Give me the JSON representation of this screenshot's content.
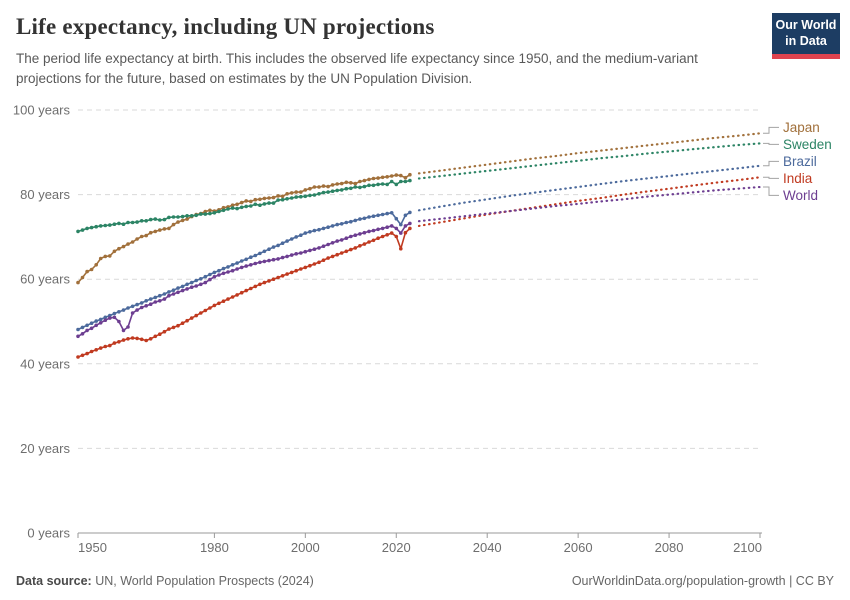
{
  "header": {
    "title": "Life expectancy, including UN projections",
    "subtitle": "The period life expectancy at birth. This includes the observed life expectancy since 1950, and the medium-variant projections for the future, based on estimates by the UN Population Division.",
    "logo": {
      "line1": "Our World",
      "line2": "in Data",
      "bg": "#1D3D63",
      "accent": "#E0434F"
    }
  },
  "footer": {
    "source_label": "Data source:",
    "source_value": " UN, World Population Prospects (2024)",
    "link": "OurWorldinData.org/population-growth | CC BY"
  },
  "chart_data": {
    "type": "line",
    "title": "Life expectancy, including UN projections",
    "xlabel": "",
    "ylabel": "years",
    "xlim": [
      1950,
      2100
    ],
    "ylim": [
      0,
      100
    ],
    "grid": "horizontal-dashed",
    "legend_position": "right-of-line-ends",
    "x_ticks": [
      "1950",
      "1980",
      "2000",
      "2020",
      "2040",
      "2060",
      "2080",
      "2100"
    ],
    "y_ticks": [
      {
        "value": 0,
        "label": "0 years"
      },
      {
        "value": 20,
        "label": "20 years"
      },
      {
        "value": 40,
        "label": "40 years"
      },
      {
        "value": 60,
        "label": "60 years"
      },
      {
        "value": 80,
        "label": "80 years"
      },
      {
        "value": 100,
        "label": "100 years"
      }
    ],
    "observed_period": "1950-2023 solid line with yearly dot markers",
    "projected_period": "2024-2100 dotted line (UN medium-variant projection)",
    "series": [
      {
        "name": "Japan",
        "color": "#A1703B",
        "observed": {
          "start": 1950,
          "step": 1,
          "values": [
            59.2,
            60.4,
            61.8,
            62.3,
            63.4,
            64.9,
            65.4,
            65.5,
            66.6,
            67.2,
            67.7,
            68.3,
            68.8,
            69.5,
            70.1,
            70.3,
            71.0,
            71.3,
            71.6,
            71.9,
            72.0,
            72.9,
            73.5,
            73.9,
            74.2,
            74.8,
            75.3,
            75.5,
            76.0,
            76.3,
            76.1,
            76.4,
            76.9,
            77.1,
            77.5,
            77.7,
            78.1,
            78.5,
            78.4,
            78.8,
            78.9,
            79.1,
            79.2,
            79.3,
            79.7,
            79.6,
            80.2,
            80.4,
            80.6,
            80.6,
            81.1,
            81.4,
            81.8,
            81.8,
            82.0,
            81.9,
            82.3,
            82.5,
            82.6,
            82.9,
            82.8,
            82.6,
            83.1,
            83.3,
            83.6,
            83.8,
            83.9,
            84.1,
            84.2,
            84.4,
            84.6,
            84.5,
            84.0,
            84.7
          ]
        },
        "projected": {
          "start": 2025,
          "step": 5,
          "values": [
            85.0,
            85.7,
            86.4,
            87.1,
            87.8,
            88.5,
            89.1,
            89.8,
            90.4,
            91.0,
            91.6,
            92.2,
            92.8,
            93.4,
            93.9,
            94.5
          ]
        }
      },
      {
        "name": "Sweden",
        "color": "#2C8465",
        "observed": {
          "start": 1950,
          "step": 1,
          "values": [
            71.3,
            71.6,
            72.0,
            72.2,
            72.4,
            72.6,
            72.7,
            72.8,
            73.0,
            73.2,
            73.0,
            73.4,
            73.4,
            73.5,
            73.8,
            73.8,
            74.1,
            74.2,
            74.0,
            74.1,
            74.6,
            74.7,
            74.7,
            74.8,
            75.0,
            75.0,
            75.1,
            75.4,
            75.4,
            75.5,
            75.7,
            76.0,
            76.3,
            76.6,
            76.8,
            76.7,
            77.0,
            77.2,
            77.3,
            77.7,
            77.5,
            77.8,
            78.0,
            78.0,
            78.7,
            78.8,
            79.0,
            79.2,
            79.4,
            79.5,
            79.6,
            79.8,
            79.9,
            80.2,
            80.5,
            80.6,
            80.8,
            81.0,
            81.1,
            81.4,
            81.5,
            81.8,
            81.7,
            81.9,
            82.2,
            82.2,
            82.4,
            82.5,
            82.4,
            83.1,
            82.4,
            83.1,
            83.1,
            83.3
          ]
        },
        "projected": {
          "start": 2025,
          "step": 5,
          "values": [
            83.8,
            84.4,
            85.0,
            85.6,
            86.2,
            86.8,
            87.4,
            88.0,
            88.6,
            89.1,
            89.7,
            90.2,
            90.7,
            91.2,
            91.7,
            92.1
          ]
        }
      },
      {
        "name": "Brazil",
        "color": "#4C6A9C",
        "observed": {
          "start": 1950,
          "step": 1,
          "values": [
            48.1,
            48.6,
            49.1,
            49.6,
            50.1,
            50.5,
            51.0,
            51.4,
            51.9,
            52.3,
            52.7,
            53.2,
            53.6,
            54.0,
            54.4,
            54.9,
            55.3,
            55.7,
            56.1,
            56.5,
            57.0,
            57.4,
            57.9,
            58.3,
            58.8,
            59.2,
            59.7,
            60.1,
            60.6,
            61.1,
            61.6,
            62.0,
            62.5,
            62.9,
            63.4,
            63.8,
            64.3,
            64.7,
            65.2,
            65.6,
            66.1,
            66.6,
            67.1,
            67.6,
            68.0,
            68.5,
            69.0,
            69.5,
            70.0,
            70.4,
            70.9,
            71.2,
            71.5,
            71.7,
            72.0,
            72.3,
            72.6,
            72.9,
            73.1,
            73.4,
            73.6,
            73.9,
            74.2,
            74.4,
            74.7,
            74.9,
            75.1,
            75.3,
            75.5,
            75.7,
            74.3,
            72.9,
            75.1,
            75.8
          ]
        },
        "projected": {
          "start": 2025,
          "step": 5,
          "values": [
            76.3,
            77.2,
            78.1,
            78.9,
            79.7,
            80.4,
            81.1,
            81.8,
            82.5,
            83.2,
            83.8,
            84.4,
            85.0,
            85.6,
            86.2,
            86.8
          ]
        }
      },
      {
        "name": "India",
        "color": "#C03A20",
        "observed": {
          "start": 1950,
          "step": 1,
          "values": [
            41.6,
            42.0,
            42.4,
            42.9,
            43.3,
            43.7,
            44.1,
            44.3,
            44.9,
            45.2,
            45.6,
            45.9,
            46.1,
            46.0,
            45.8,
            45.5,
            45.9,
            46.5,
            47.0,
            47.6,
            48.2,
            48.6,
            49.0,
            49.6,
            50.2,
            50.8,
            51.4,
            52.0,
            52.6,
            53.2,
            53.8,
            54.3,
            54.8,
            55.3,
            55.8,
            56.3,
            56.8,
            57.3,
            57.8,
            58.3,
            58.8,
            59.2,
            59.6,
            60.0,
            60.4,
            60.8,
            61.2,
            61.6,
            62.0,
            62.4,
            62.8,
            63.2,
            63.6,
            64.0,
            64.5,
            65.0,
            65.4,
            65.8,
            66.2,
            66.6,
            67.0,
            67.4,
            67.9,
            68.3,
            68.8,
            69.2,
            69.7,
            70.1,
            70.5,
            70.9,
            70.1,
            67.2,
            71.0,
            72.0
          ]
        },
        "projected": {
          "start": 2025,
          "step": 5,
          "values": [
            72.6,
            73.5,
            74.4,
            75.3,
            76.1,
            76.9,
            77.7,
            78.5,
            79.2,
            80.0,
            80.7,
            81.4,
            82.1,
            82.8,
            83.4,
            84.1
          ]
        }
      },
      {
        "name": "World",
        "color": "#6D3E91",
        "observed": {
          "start": 1950,
          "step": 1,
          "values": [
            46.5,
            47.1,
            47.9,
            48.4,
            49.1,
            49.7,
            50.3,
            50.8,
            51.0,
            50.0,
            47.9,
            48.7,
            52.0,
            52.7,
            53.3,
            53.7,
            54.1,
            54.6,
            54.9,
            55.3,
            56.1,
            56.5,
            56.9,
            57.3,
            57.7,
            58.1,
            58.4,
            58.8,
            59.2,
            59.9,
            60.6,
            61.0,
            61.4,
            61.7,
            62.0,
            62.4,
            62.8,
            63.1,
            63.4,
            63.7,
            64.0,
            64.2,
            64.4,
            64.6,
            64.8,
            65.1,
            65.4,
            65.7,
            66.0,
            66.2,
            66.5,
            66.8,
            67.1,
            67.4,
            67.8,
            68.2,
            68.6,
            69.0,
            69.3,
            69.7,
            70.1,
            70.4,
            70.7,
            71.0,
            71.3,
            71.5,
            71.8,
            72.0,
            72.3,
            72.6,
            72.0,
            70.9,
            72.6,
            73.2
          ]
        },
        "projected": {
          "start": 2025,
          "step": 5,
          "values": [
            73.7,
            74.3,
            74.9,
            75.5,
            76.1,
            76.7,
            77.3,
            77.8,
            78.4,
            78.9,
            79.5,
            80.0,
            80.5,
            81.0,
            81.4,
            81.8
          ]
        }
      }
    ]
  }
}
